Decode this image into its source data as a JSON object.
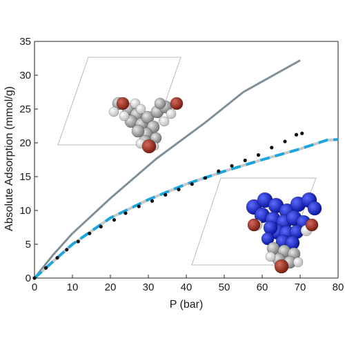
{
  "chart_data": {
    "type": "line",
    "title": "",
    "xlabel": "P (bar)",
    "ylabel": "Absolute Adsorption (mmol/g)",
    "xlim": [
      0,
      80
    ],
    "ylim": [
      0,
      35
    ],
    "xticks": [
      0,
      10,
      20,
      30,
      40,
      50,
      60,
      70,
      80
    ],
    "yticks": [
      0,
      5,
      10,
      15,
      20,
      25,
      30,
      35
    ],
    "grid": false,
    "legend": "none",
    "series": [
      {
        "style": "solid",
        "color": "#7f8f99",
        "x": [
          0,
          5,
          10,
          20,
          32,
          45,
          55,
          70
        ],
        "y": [
          0,
          3.5,
          6.6,
          11.8,
          17.6,
          23.0,
          27.5,
          32.2
        ]
      },
      {
        "style": "dashed",
        "color": "#1aa6df",
        "color2": "#c8c8c8",
        "x": [
          0,
          5,
          10,
          20,
          30,
          40,
          50,
          60,
          70,
          77,
          80
        ],
        "y": [
          0,
          2.5,
          5.0,
          8.9,
          11.6,
          13.9,
          15.8,
          17.5,
          19.1,
          20.4,
          20.5
        ]
      },
      {
        "style": "dots",
        "color": "#111111",
        "x": [
          0,
          3,
          6,
          8.5,
          11.5,
          14.5,
          17.5,
          21,
          24,
          27.5,
          31,
          34.5,
          38,
          41.5,
          45,
          48.5,
          52,
          55.5,
          59,
          62.5,
          66,
          69,
          70.5
        ],
        "y": [
          0,
          1.5,
          3.0,
          4.2,
          5.4,
          6.6,
          7.6,
          8.6,
          9.6,
          10.6,
          11.4,
          12.3,
          13.1,
          13.9,
          14.8,
          15.8,
          16.6,
          17.4,
          18.2,
          19.3,
          20.2,
          21.2,
          21.4
        ]
      }
    ]
  },
  "insets": [
    {
      "name": "inset-molecule-top-left",
      "atoms": "grey-white-red"
    },
    {
      "name": "inset-molecule-bottom-right",
      "atoms": "blue-grey-red"
    }
  ]
}
